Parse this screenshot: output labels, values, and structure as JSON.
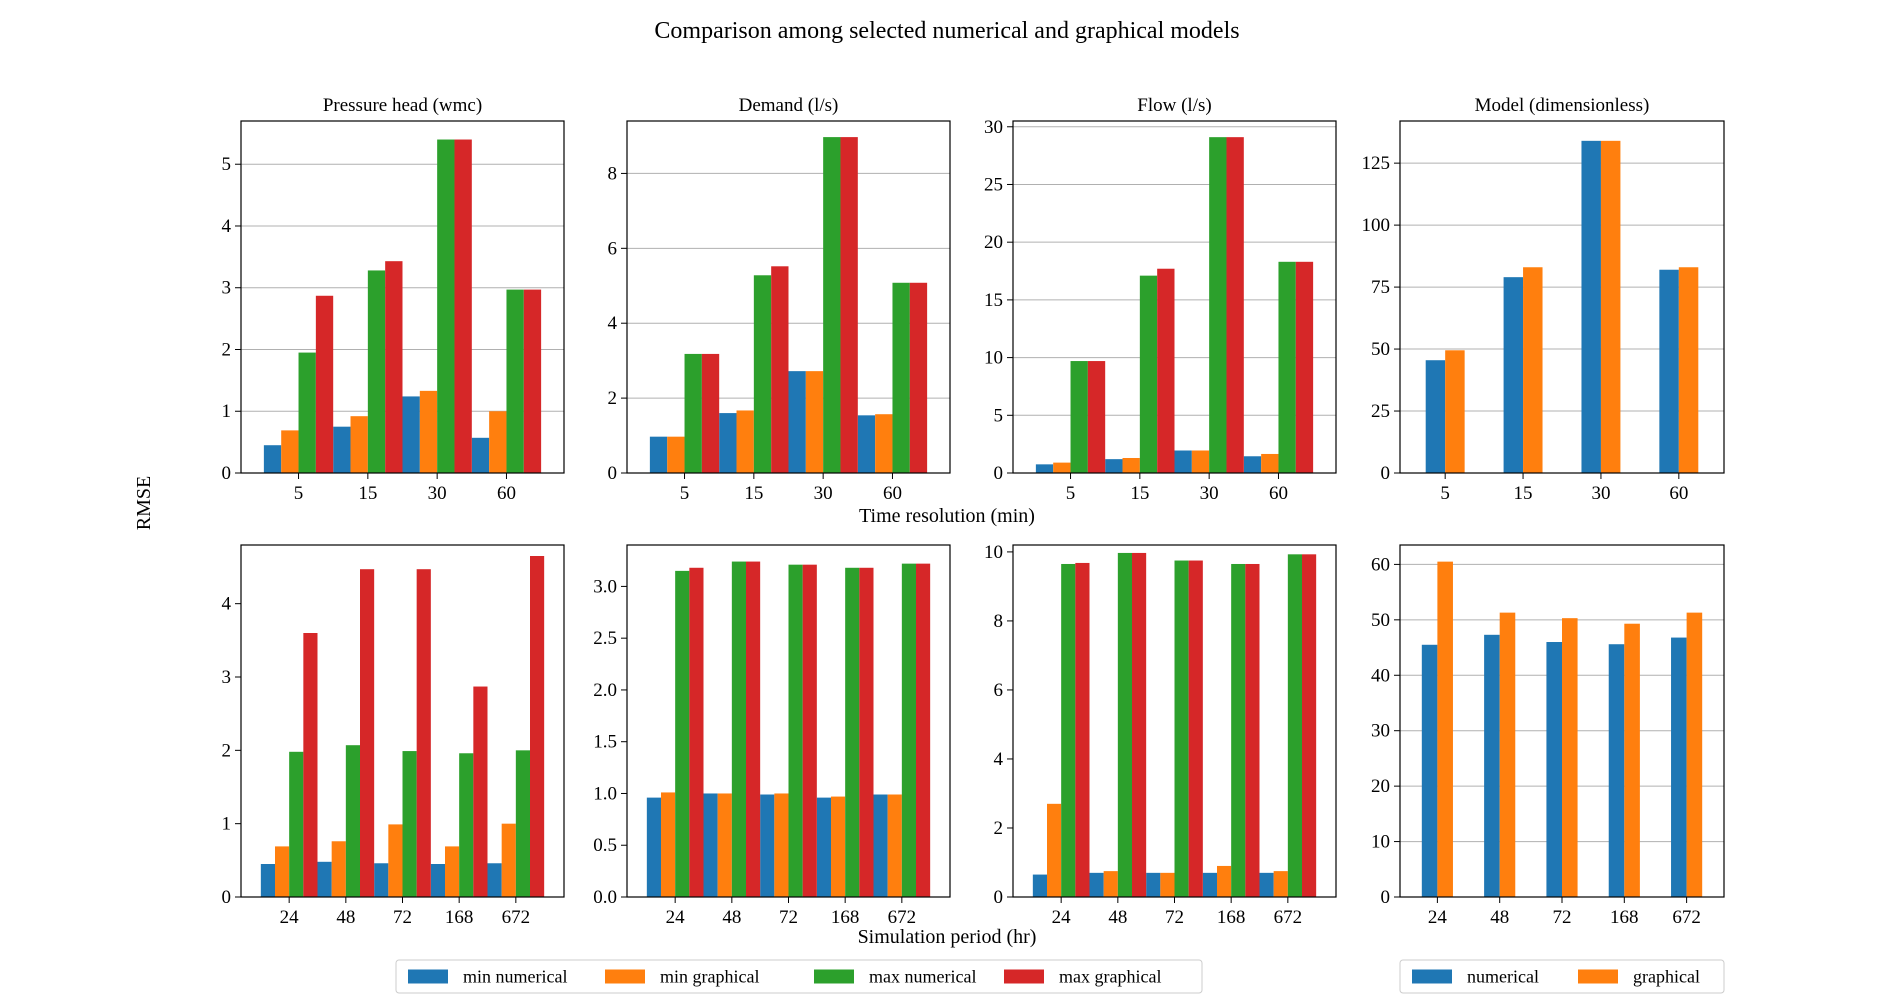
{
  "suptitle": "Comparison among selected numerical and graphical models",
  "ylabel": "RMSE",
  "xlabel_top": "Time resolution (min)",
  "xlabel_bottom": "Simulation period (hr)",
  "legend_left": [
    {
      "label": "min numerical",
      "color": "#1f77b4"
    },
    {
      "label": "min graphical",
      "color": "#ff7f0e"
    },
    {
      "label": "max numerical",
      "color": "#2ca02c"
    },
    {
      "label": "max graphical",
      "color": "#d62728"
    }
  ],
  "legend_right": [
    {
      "label": "numerical",
      "color": "#1f77b4"
    },
    {
      "label": "graphical",
      "color": "#ff7f0e"
    }
  ],
  "chart_data": [
    {
      "type": "bar",
      "title": "Pressure head (wmc)",
      "categories": [
        "5",
        "15",
        "30",
        "60"
      ],
      "ylim": [
        0,
        5.7
      ],
      "yticks": [
        0,
        1,
        2,
        3,
        4,
        5
      ],
      "grid": "y",
      "legend": "below",
      "series": [
        {
          "name": "min numerical",
          "color": "#1f77b4",
          "values": [
            0.45,
            0.75,
            1.24,
            0.57
          ]
        },
        {
          "name": "min graphical",
          "color": "#ff7f0e",
          "values": [
            0.69,
            0.92,
            1.33,
            1.0
          ]
        },
        {
          "name": "max numerical",
          "color": "#2ca02c",
          "values": [
            1.95,
            3.28,
            5.4,
            2.97
          ]
        },
        {
          "name": "max graphical",
          "color": "#d62728",
          "values": [
            2.87,
            3.43,
            5.4,
            2.97
          ]
        }
      ]
    },
    {
      "type": "bar",
      "title": "Demand (l/s)",
      "categories": [
        "5",
        "15",
        "30",
        "60"
      ],
      "ylim": [
        0,
        9.4
      ],
      "yticks": [
        0,
        2,
        4,
        6,
        8
      ],
      "grid": "y",
      "legend": "below",
      "series": [
        {
          "name": "min numerical",
          "color": "#1f77b4",
          "values": [
            0.97,
            1.6,
            2.72,
            1.54
          ]
        },
        {
          "name": "min graphical",
          "color": "#ff7f0e",
          "values": [
            0.97,
            1.67,
            2.72,
            1.57
          ]
        },
        {
          "name": "max numerical",
          "color": "#2ca02c",
          "values": [
            3.18,
            5.28,
            8.97,
            5.08
          ]
        },
        {
          "name": "max graphical",
          "color": "#d62728",
          "values": [
            3.18,
            5.52,
            8.97,
            5.08
          ]
        }
      ]
    },
    {
      "type": "bar",
      "title": "Flow (l/s)",
      "categories": [
        "5",
        "15",
        "30",
        "60"
      ],
      "ylim": [
        0,
        30.5
      ],
      "yticks": [
        0,
        5,
        10,
        15,
        20,
        25,
        30
      ],
      "grid": "y",
      "legend": "below",
      "series": [
        {
          "name": "min numerical",
          "color": "#1f77b4",
          "values": [
            0.75,
            1.2,
            1.95,
            1.45
          ]
        },
        {
          "name": "min graphical",
          "color": "#ff7f0e",
          "values": [
            0.9,
            1.3,
            1.95,
            1.65
          ]
        },
        {
          "name": "max numerical",
          "color": "#2ca02c",
          "values": [
            9.7,
            17.1,
            29.1,
            18.3
          ]
        },
        {
          "name": "max graphical",
          "color": "#d62728",
          "values": [
            9.7,
            17.7,
            29.1,
            18.3
          ]
        }
      ]
    },
    {
      "type": "bar",
      "title": "Model (dimensionless)",
      "categories": [
        "5",
        "15",
        "30",
        "60"
      ],
      "ylim": [
        0,
        142
      ],
      "yticks": [
        0,
        25,
        50,
        75,
        100,
        125
      ],
      "grid": "y",
      "legend": "below-right",
      "series": [
        {
          "name": "numerical",
          "color": "#1f77b4",
          "values": [
            45.5,
            79,
            134,
            82
          ]
        },
        {
          "name": "graphical",
          "color": "#ff7f0e",
          "values": [
            49.5,
            83,
            134,
            83
          ]
        }
      ]
    },
    {
      "type": "bar",
      "title": "",
      "categories": [
        "24",
        "48",
        "72",
        "168",
        "672"
      ],
      "ylim": [
        0,
        4.8
      ],
      "yticks": [
        0,
        1,
        2,
        3,
        4
      ],
      "grid": "none",
      "legend": "below",
      "series": [
        {
          "name": "min numerical",
          "color": "#1f77b4",
          "values": [
            0.45,
            0.48,
            0.46,
            0.45,
            0.46
          ]
        },
        {
          "name": "min graphical",
          "color": "#ff7f0e",
          "values": [
            0.69,
            0.76,
            0.99,
            0.69,
            1.0
          ]
        },
        {
          "name": "max numerical",
          "color": "#2ca02c",
          "values": [
            1.98,
            2.07,
            1.99,
            1.96,
            2.0
          ]
        },
        {
          "name": "max graphical",
          "color": "#d62728",
          "values": [
            3.6,
            4.47,
            4.47,
            2.87,
            4.65
          ]
        }
      ]
    },
    {
      "type": "bar",
      "title": "",
      "categories": [
        "24",
        "48",
        "72",
        "168",
        "672"
      ],
      "ylim": [
        0,
        3.4
      ],
      "yticks": [
        0,
        0.5,
        1,
        1.5,
        2,
        2.5,
        3
      ],
      "ytick_labels": [
        "0.0",
        "0.5",
        "1.0",
        "1.5",
        "2.0",
        "2.5",
        "3.0"
      ],
      "grid": "none",
      "legend": "below",
      "series": [
        {
          "name": "min numerical",
          "color": "#1f77b4",
          "values": [
            0.96,
            1.0,
            0.99,
            0.96,
            0.99
          ]
        },
        {
          "name": "min graphical",
          "color": "#ff7f0e",
          "values": [
            1.01,
            1.0,
            1.0,
            0.97,
            0.99
          ]
        },
        {
          "name": "max numerical",
          "color": "#2ca02c",
          "values": [
            3.15,
            3.24,
            3.21,
            3.18,
            3.22
          ]
        },
        {
          "name": "max graphical",
          "color": "#d62728",
          "values": [
            3.18,
            3.24,
            3.21,
            3.18,
            3.22
          ]
        }
      ]
    },
    {
      "type": "bar",
      "title": "",
      "categories": [
        "24",
        "48",
        "72",
        "168",
        "672"
      ],
      "ylim": [
        0,
        10.2
      ],
      "yticks": [
        0,
        2,
        4,
        6,
        8,
        10
      ],
      "grid": "none",
      "legend": "below",
      "series": [
        {
          "name": "min numerical",
          "color": "#1f77b4",
          "values": [
            0.65,
            0.7,
            0.7,
            0.7,
            0.7
          ]
        },
        {
          "name": "min graphical",
          "color": "#ff7f0e",
          "values": [
            2.7,
            0.75,
            0.7,
            0.9,
            0.75
          ]
        },
        {
          "name": "max numerical",
          "color": "#2ca02c",
          "values": [
            9.65,
            9.97,
            9.75,
            9.65,
            9.93
          ]
        },
        {
          "name": "max graphical",
          "color": "#d62728",
          "values": [
            9.68,
            9.97,
            9.75,
            9.65,
            9.93
          ]
        }
      ]
    },
    {
      "type": "bar",
      "title": "",
      "categories": [
        "24",
        "48",
        "72",
        "168",
        "672"
      ],
      "ylim": [
        0,
        63.5
      ],
      "yticks": [
        0,
        10,
        20,
        30,
        40,
        50,
        60
      ],
      "grid": "y",
      "legend": "below-right",
      "series": [
        {
          "name": "numerical",
          "color": "#1f77b4",
          "values": [
            45.5,
            47.3,
            46.0,
            45.6,
            46.8
          ]
        },
        {
          "name": "graphical",
          "color": "#ff7f0e",
          "values": [
            60.5,
            51.3,
            50.3,
            49.3,
            51.3
          ]
        }
      ]
    }
  ]
}
